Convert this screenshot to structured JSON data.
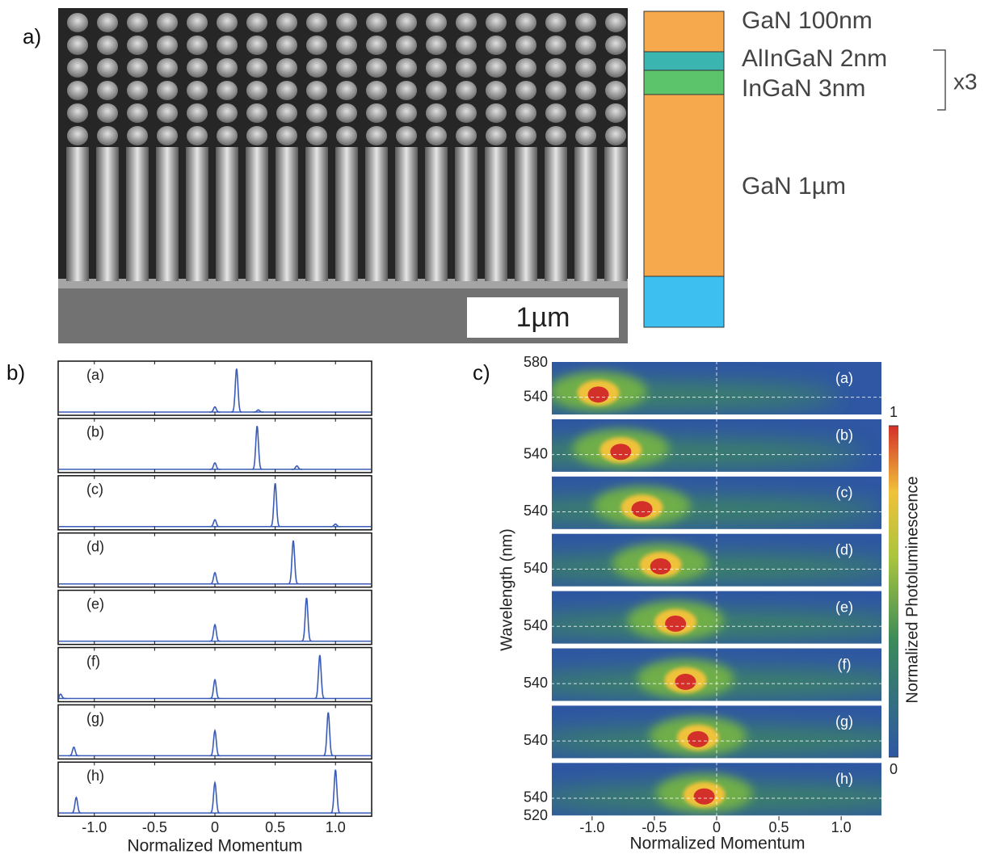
{
  "panel_a": {
    "label": "a)",
    "scale_bar": "1µm",
    "repeat": "x3",
    "substrate_color": "#3dbff0",
    "layers": [
      {
        "name": "GaN 100nm",
        "color": "#f7a94e"
      },
      {
        "name": "AlInGaN 2nm",
        "color": "#3bb5b0"
      },
      {
        "name": "InGaN 3nm",
        "color": "#5cc46a"
      },
      {
        "name": "GaN 1µm",
        "color": "#f7a94e"
      }
    ]
  },
  "panel_b": {
    "label": "b)",
    "xlabel": "Normalized Momentum",
    "xlim": [
      -1.3,
      1.3
    ],
    "ylim": [
      0,
      1.1
    ],
    "color": "#3a5bb8",
    "xticks": [
      {
        "value": -1,
        "label": "-1.0"
      },
      -0.5,
      0,
      0.5,
      {
        "value": 1,
        "label": "1.0"
      }
    ],
    "subplots": [
      {
        "label": "(a)",
        "peaks": [
          {
            "x": 0.18,
            "height": 1
          },
          {
            "x": 0,
            "height": 0.12
          },
          {
            "x": 0.36,
            "height": 0.05
          }
        ]
      },
      {
        "label": "(b)",
        "peaks": [
          {
            "x": 0.35,
            "height": 1
          },
          {
            "x": 0,
            "height": 0.15
          },
          {
            "x": 0.68,
            "height": 0.08
          }
        ]
      },
      {
        "label": "(c)",
        "peaks": [
          {
            "x": 0.5,
            "height": 1
          },
          {
            "x": 0,
            "height": 0.16
          },
          {
            "x": 1.0,
            "height": 0.06
          }
        ]
      },
      {
        "label": "(d)",
        "peaks": [
          {
            "x": 0.65,
            "height": 1
          },
          {
            "x": 0,
            "height": 0.26
          }
        ]
      },
      {
        "label": "(e)",
        "peaks": [
          {
            "x": 0.76,
            "height": 1
          },
          {
            "x": 0,
            "height": 0.38
          }
        ]
      },
      {
        "label": "(f)",
        "peaks": [
          {
            "x": 0.87,
            "height": 1
          },
          {
            "x": 0,
            "height": 0.43
          },
          {
            "x": -1.28,
            "height": 0.1
          }
        ]
      },
      {
        "label": "(g)",
        "peaks": [
          {
            "x": 0.94,
            "height": 1
          },
          {
            "x": 0,
            "height": 0.58
          },
          {
            "x": -1.17,
            "height": 0.2
          }
        ]
      },
      {
        "label": "(h)",
        "peaks": [
          {
            "x": 1.0,
            "height": 1
          },
          {
            "x": 0,
            "height": 0.7
          },
          {
            "x": -1.15,
            "height": 0.36
          }
        ]
      }
    ]
  },
  "panel_c": {
    "label": "c)",
    "xlabel": "Normalized Momentum",
    "ylabel": "Wavelength (nm)",
    "xlim": [
      -1.33,
      1.33
    ],
    "ylim": [
      520,
      580
    ],
    "xticks": [
      {
        "value": -1,
        "label": "-1.0"
      },
      -0.5,
      0,
      0.5,
      {
        "value": 1,
        "label": "1.0"
      }
    ],
    "colorbar": {
      "label": "Normalized Photoluminescence",
      "ticks": [
        0,
        1
      ]
    },
    "subplots": [
      {
        "label": "(a)",
        "yticks": [
          580,
          540
        ],
        "hotspot": {
          "x": -0.95,
          "wavelength": 543
        }
      },
      {
        "label": "(b)",
        "yticks": [
          540
        ],
        "hotspot": {
          "x": -0.77,
          "wavelength": 543
        }
      },
      {
        "label": "(c)",
        "yticks": [
          540
        ],
        "hotspot": {
          "x": -0.6,
          "wavelength": 543
        }
      },
      {
        "label": "(d)",
        "yticks": [
          540
        ],
        "hotspot": {
          "x": -0.45,
          "wavelength": 543
        }
      },
      {
        "label": "(e)",
        "yticks": [
          540
        ],
        "hotspot": {
          "x": -0.33,
          "wavelength": 543
        }
      },
      {
        "label": "(f)",
        "yticks": [
          540
        ],
        "hotspot": {
          "x": -0.25,
          "wavelength": 542
        }
      },
      {
        "label": "(g)",
        "yticks": [
          540
        ],
        "hotspot": {
          "x": -0.15,
          "wavelength": 542
        }
      },
      {
        "label": "(h)",
        "yticks": [
          540,
          520
        ],
        "hotspot": {
          "x": -0.1,
          "wavelength": 542
        }
      }
    ]
  }
}
